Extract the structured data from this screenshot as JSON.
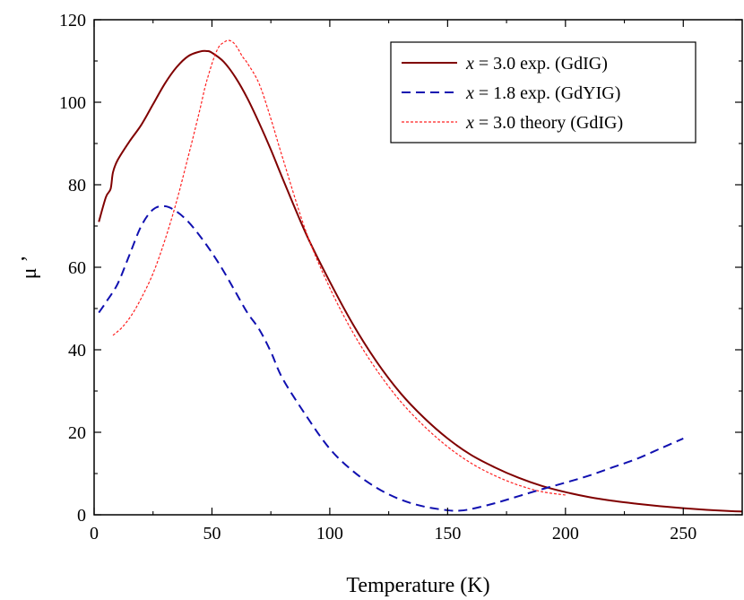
{
  "chart_data": {
    "type": "line",
    "title": "",
    "xlabel": "Temperature (K)",
    "ylabel": "μ ’",
    "xlim": [
      0,
      275
    ],
    "ylim": [
      0,
      120
    ],
    "xticks": [
      0,
      50,
      100,
      150,
      200,
      250
    ],
    "yticks": [
      0,
      20,
      40,
      60,
      80,
      100,
      120
    ],
    "grid": false,
    "legend_position": "top-right",
    "series": [
      {
        "name": "x = 3.0 exp. (GdIG)",
        "legend_var": "x",
        "legend_rest": " = 3.0 exp. (GdIG)",
        "color": "#800000",
        "style": "solid",
        "x": [
          2,
          5,
          7,
          8,
          10,
          15,
          20,
          25,
          30,
          35,
          40,
          45,
          48,
          50,
          55,
          60,
          65,
          70,
          75,
          80,
          90,
          100,
          110,
          120,
          130,
          140,
          150,
          160,
          170,
          180,
          190,
          200,
          210,
          220,
          230,
          240,
          250,
          260,
          270,
          275
        ],
        "y": [
          71,
          77,
          79,
          83,
          86,
          90.5,
          94.5,
          99.5,
          104.5,
          108.5,
          111.2,
          112.3,
          112.4,
          112,
          109.8,
          106,
          101,
          95,
          88.5,
          81.5,
          68,
          56.5,
          46,
          37,
          29.5,
          23.5,
          18.5,
          14.5,
          11.5,
          9,
          7,
          5.5,
          4.3,
          3.4,
          2.7,
          2.1,
          1.6,
          1.2,
          0.9,
          0.8
        ]
      },
      {
        "name": "x = 1.8 exp. (GdYIG)",
        "legend_var": "x",
        "legend_rest": " = 1.8 exp. (GdYIG)",
        "color": "#1010b0",
        "style": "dashed",
        "x": [
          2,
          5,
          10,
          15,
          20,
          25,
          30,
          35,
          40,
          45,
          50,
          55,
          60,
          65,
          70,
          75,
          80,
          90,
          100,
          110,
          120,
          130,
          140,
          150,
          155,
          160,
          170,
          180,
          190,
          200,
          210,
          220,
          230,
          240,
          250
        ],
        "y": [
          49,
          51.5,
          56,
          63,
          70,
          74,
          74.8,
          73.5,
          71,
          67.5,
          63.5,
          59,
          54,
          49,
          45,
          39.5,
          33,
          24,
          16,
          10.5,
          6.5,
          3.7,
          2,
          1.1,
          1,
          1.4,
          2.8,
          4.5,
          6.2,
          7.8,
          9.5,
          11.5,
          13.5,
          16,
          18.5
        ]
      },
      {
        "name": "x = 3.0 theory (GdIG)",
        "legend_var": "x",
        "legend_rest": " = 3.0 theory (GdIG)",
        "color": "#ff2020",
        "style": "dotted",
        "x": [
          8,
          12,
          16,
          20,
          25,
          30,
          35,
          40,
          42,
          45,
          47,
          49,
          51,
          53,
          55,
          57,
          59,
          61,
          63,
          65,
          70,
          75,
          80,
          90,
          100,
          110,
          120,
          130,
          140,
          150,
          160,
          170,
          180,
          190,
          200
        ],
        "y": [
          43.5,
          45.5,
          48.5,
          52.5,
          58.5,
          66.5,
          76,
          87,
          91.5,
          98.5,
          103.5,
          107.5,
          111,
          113.5,
          114.5,
          115,
          114.5,
          113,
          111,
          109.5,
          104.5,
          96,
          86.5,
          68.5,
          55,
          44,
          35,
          27.5,
          21.5,
          16.5,
          12.5,
          9.5,
          7.2,
          5.6,
          4.8
        ]
      }
    ]
  }
}
